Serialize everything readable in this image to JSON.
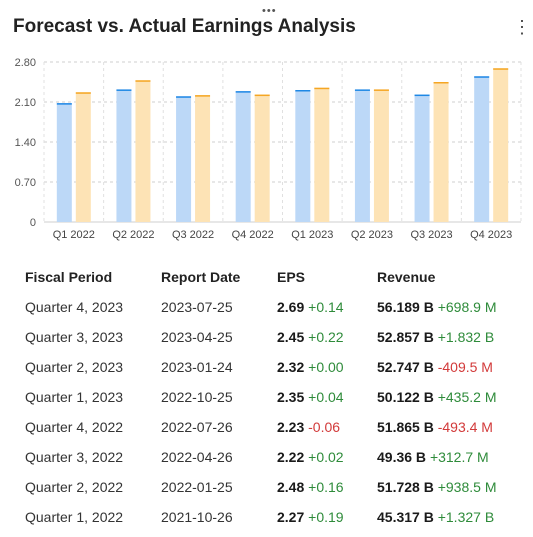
{
  "header": {
    "title": "Forecast vs. Actual Earnings Analysis",
    "handle_glyph": "•••",
    "menu_glyph": "⋮"
  },
  "colors": {
    "forecast_bar": "#bcd8f7",
    "forecast_cap": "#1e88e5",
    "actual_bar": "#fde3b5",
    "actual_cap": "#f5a623",
    "positive": "#2e8b3a",
    "negative": "#d23a3a"
  },
  "chart_data": {
    "type": "bar",
    "categories": [
      "Q1 2022",
      "Q2 2022",
      "Q3 2022",
      "Q4 2022",
      "Q1 2023",
      "Q2 2023",
      "Q3 2023",
      "Q4 2023"
    ],
    "series": [
      {
        "values": [
          2.08,
          2.32,
          2.2,
          2.29,
          2.31,
          2.32,
          2.23,
          2.55
        ]
      },
      {
        "values": [
          2.27,
          2.48,
          2.22,
          2.23,
          2.35,
          2.32,
          2.45,
          2.69
        ]
      }
    ],
    "yticks": [
      "0",
      "0.70",
      "1.40",
      "2.10",
      "2.80"
    ],
    "ylim": [
      0,
      2.8
    ],
    "grid": true
  },
  "table": {
    "headers": [
      "Fiscal Period",
      "Report Date",
      "EPS",
      "Revenue"
    ],
    "rows": [
      {
        "period": "Quarter 4, 2023",
        "date": "2023-07-25",
        "eps": "2.69",
        "eps_change": "+0.14",
        "eps_dir": "pos",
        "revenue": "56.189 B",
        "rev_change": "+698.9 M",
        "rev_dir": "pos"
      },
      {
        "period": "Quarter 3, 2023",
        "date": "2023-04-25",
        "eps": "2.45",
        "eps_change": "+0.22",
        "eps_dir": "pos",
        "revenue": "52.857 B",
        "rev_change": "+1.832 B",
        "rev_dir": "pos"
      },
      {
        "period": "Quarter 2, 2023",
        "date": "2023-01-24",
        "eps": "2.32",
        "eps_change": "+0.00",
        "eps_dir": "pos",
        "revenue": "52.747 B",
        "rev_change": "-409.5 M",
        "rev_dir": "neg"
      },
      {
        "period": "Quarter 1, 2023",
        "date": "2022-10-25",
        "eps": "2.35",
        "eps_change": "+0.04",
        "eps_dir": "pos",
        "revenue": "50.122 B",
        "rev_change": "+435.2 M",
        "rev_dir": "pos"
      },
      {
        "period": "Quarter 4, 2022",
        "date": "2022-07-26",
        "eps": "2.23",
        "eps_change": "-0.06",
        "eps_dir": "neg",
        "revenue": "51.865 B",
        "rev_change": "-493.4 M",
        "rev_dir": "neg"
      },
      {
        "period": "Quarter 3, 2022",
        "date": "2022-04-26",
        "eps": "2.22",
        "eps_change": "+0.02",
        "eps_dir": "pos",
        "revenue": "49.36 B",
        "rev_change": "+312.7 M",
        "rev_dir": "pos"
      },
      {
        "period": "Quarter 2, 2022",
        "date": "2022-01-25",
        "eps": "2.48",
        "eps_change": "+0.16",
        "eps_dir": "pos",
        "revenue": "51.728 B",
        "rev_change": "+938.5 M",
        "rev_dir": "pos"
      },
      {
        "period": "Quarter 1, 2022",
        "date": "2021-10-26",
        "eps": "2.27",
        "eps_change": "+0.19",
        "eps_dir": "pos",
        "revenue": "45.317 B",
        "rev_change": "+1.327 B",
        "rev_dir": "pos"
      }
    ]
  }
}
